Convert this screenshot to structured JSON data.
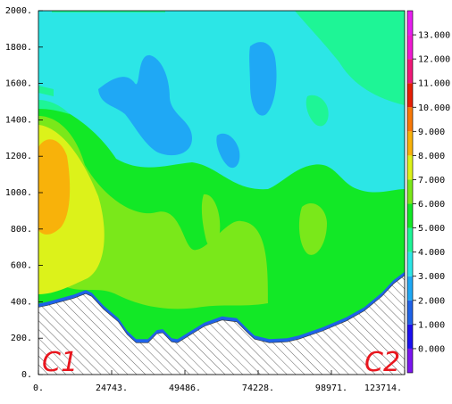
{
  "chart_data": {
    "type": "contour",
    "title": "",
    "xlabel": "",
    "ylabel": "",
    "xlim": [
      0,
      123714
    ],
    "ylim": [
      0,
      2000
    ],
    "x_ticks": [
      {
        "value": 0,
        "label": "0."
      },
      {
        "value": 24743,
        "label": "24743."
      },
      {
        "value": 49486,
        "label": "49486."
      },
      {
        "value": 74228,
        "label": "74228."
      },
      {
        "value": 98971,
        "label": "98971."
      },
      {
        "value": 123714,
        "label": "123714."
      }
    ],
    "y_ticks": [
      {
        "value": 0,
        "label": "0."
      },
      {
        "value": 200,
        "label": "200."
      },
      {
        "value": 400,
        "label": "400."
      },
      {
        "value": 600,
        "label": "600."
      },
      {
        "value": 800,
        "label": "800."
      },
      {
        "value": 1000,
        "label": "1000."
      },
      {
        "value": 1200,
        "label": "1200."
      },
      {
        "value": 1400,
        "label": "1400."
      },
      {
        "value": 1600,
        "label": "1600."
      },
      {
        "value": 1800,
        "label": "1800."
      },
      {
        "value": 2000,
        "label": "2000."
      }
    ],
    "colorbar": {
      "levels": [
        {
          "value": "0.000",
          "color": "#1c0ff0"
        },
        {
          "value": "1.000",
          "color": "#1f62e8"
        },
        {
          "value": "2.000",
          "color": "#1fa8f5"
        },
        {
          "value": "3.000",
          "color": "#2ce6e6"
        },
        {
          "value": "4.000",
          "color": "#1ef596"
        },
        {
          "value": "5.000",
          "color": "#12e826"
        },
        {
          "value": "6.000",
          "color": "#7ae81a"
        },
        {
          "value": "7.000",
          "color": "#dcf21a"
        },
        {
          "value": "8.000",
          "color": "#f8b20a"
        },
        {
          "value": "9.000",
          "color": "#f87808"
        },
        {
          "value": "10.000",
          "color": "#e61e05"
        },
        {
          "value": "11.000",
          "color": "#f01878"
        },
        {
          "value": "12.000",
          "color": "#f01ad2"
        },
        {
          "value": "13.000",
          "color": "#e61ef0"
        }
      ],
      "below_color": "#7b14f0"
    },
    "regions": [
      {
        "name": "background",
        "color": "#2ce6e6"
      },
      {
        "name": "upper-right-green",
        "color": "#1ef596"
      },
      {
        "name": "lower-green",
        "color": "#12e826"
      },
      {
        "name": "left-yellow-green",
        "color": "#7ae81a"
      },
      {
        "name": "left-yellow",
        "color": "#dcf21a"
      },
      {
        "name": "left-orange-core",
        "color": "#f8b20a"
      },
      {
        "name": "blue-pockets",
        "color": "#1fa8f5"
      }
    ],
    "terrain": {
      "points": [
        [
          0,
          370
        ],
        [
          3000,
          380
        ],
        [
          12000,
          420
        ],
        [
          16000,
          445
        ],
        [
          18000,
          430
        ],
        [
          22000,
          360
        ],
        [
          27000,
          290
        ],
        [
          30000,
          220
        ],
        [
          33000,
          175
        ],
        [
          37000,
          175
        ],
        [
          40000,
          225
        ],
        [
          42000,
          230
        ],
        [
          45000,
          180
        ],
        [
          47000,
          175
        ],
        [
          51000,
          215
        ],
        [
          56000,
          265
        ],
        [
          62000,
          300
        ],
        [
          67000,
          290
        ],
        [
          71000,
          225
        ],
        [
          73000,
          195
        ],
        [
          78000,
          175
        ],
        [
          84000,
          180
        ],
        [
          88000,
          195
        ],
        [
          96000,
          240
        ],
        [
          104000,
          295
        ],
        [
          110000,
          350
        ],
        [
          116000,
          430
        ],
        [
          120000,
          500
        ],
        [
          123714,
          545
        ]
      ],
      "pattern": "hatched"
    },
    "corner_labels": {
      "left": "C1",
      "right": "C2"
    }
  }
}
